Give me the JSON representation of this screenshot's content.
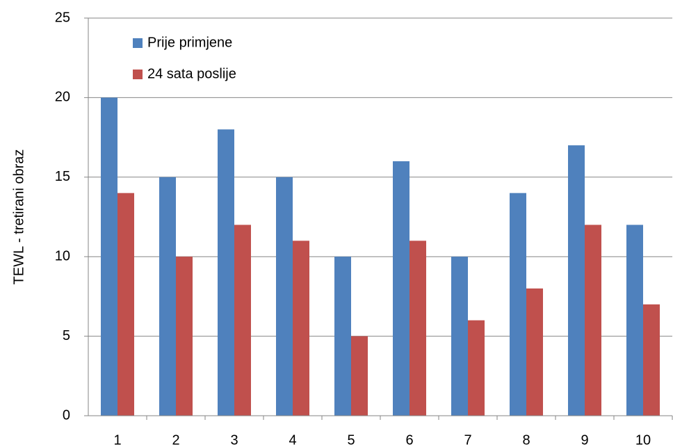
{
  "chart_data": {
    "type": "bar",
    "y_label": "TEWL - tretirani obraz",
    "categories": [
      "1",
      "2",
      "3",
      "4",
      "5",
      "6",
      "7",
      "8",
      "9",
      "10"
    ],
    "series": [
      {
        "name": "Prije primjene",
        "color": "#4f81bd",
        "values": [
          20,
          15,
          18,
          15,
          10,
          16,
          10,
          14,
          17,
          12
        ]
      },
      {
        "name": "24 sata poslije",
        "color": "#c0504d",
        "values": [
          14,
          10,
          12,
          11,
          5,
          11,
          6,
          8,
          12,
          7
        ]
      }
    ],
    "ylim": [
      0,
      25
    ],
    "yticks": [
      0,
      5,
      10,
      15,
      20,
      25
    ],
    "grid": true,
    "legend": "top-left"
  }
}
